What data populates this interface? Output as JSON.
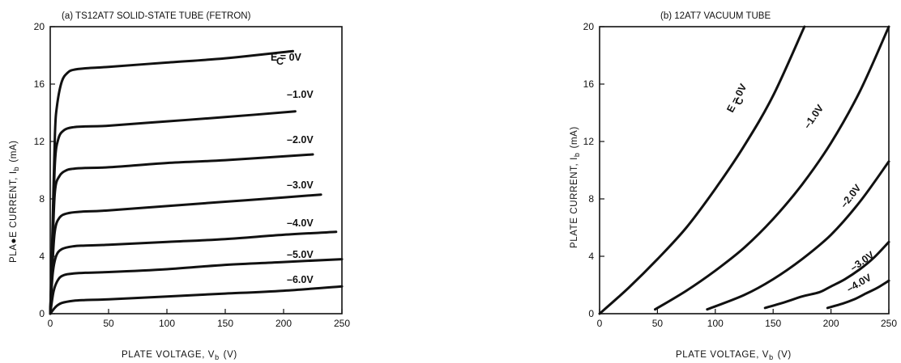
{
  "chart_data": [
    {
      "type": "line",
      "title": "(a)   TS12AT7 SOLID-STATE TUBE (FETRON)",
      "xlabel": "PLATE VOLTAGE, V",
      "xlabel_sub": "b",
      "xlabel_unit": "(V)",
      "ylabel": "PLA●E CURRENT, I",
      "ylabel_sub": "b",
      "ylabel_unit": "(mA)",
      "xlim": [
        0,
        250
      ],
      "ylim": [
        0,
        20
      ],
      "xticks": [
        "0",
        "50",
        "100",
        "150",
        "200",
        "250"
      ],
      "yticks": [
        "0",
        "4",
        "8",
        "12",
        "16",
        "20"
      ],
      "grid": false,
      "legend": "none",
      "series": [
        {
          "name": "E = 0V",
          "name_sub": "C",
          "x": [
            0,
            2,
            4,
            6,
            10,
            15,
            20,
            30,
            40,
            50,
            100,
            150,
            208
          ],
          "y": [
            0,
            6,
            12.5,
            14.6,
            16.2,
            16.8,
            17.0,
            17.1,
            17.15,
            17.2,
            17.5,
            17.8,
            18.3
          ]
        },
        {
          "name": "–1.0V",
          "x": [
            0,
            2,
            4,
            7,
            12,
            20,
            30,
            50,
            100,
            150,
            210
          ],
          "y": [
            0,
            5,
            10.5,
            12.2,
            12.8,
            13.0,
            13.05,
            13.1,
            13.4,
            13.7,
            14.1
          ]
        },
        {
          "name": "–2.0V",
          "x": [
            0,
            2,
            4,
            8,
            14,
            20,
            30,
            50,
            100,
            150,
            225
          ],
          "y": [
            0,
            4.5,
            8.5,
            9.6,
            10.0,
            10.1,
            10.15,
            10.2,
            10.5,
            10.7,
            11.1
          ]
        },
        {
          "name": "–3.0V",
          "x": [
            0,
            2,
            4,
            8,
            15,
            25,
            50,
            100,
            150,
            200,
            232
          ],
          "y": [
            0,
            3.5,
            5.8,
            6.7,
            7.0,
            7.1,
            7.2,
            7.5,
            7.8,
            8.1,
            8.3
          ]
        },
        {
          "name": "–4.0V",
          "x": [
            0,
            2,
            5,
            10,
            20,
            30,
            50,
            100,
            150,
            200,
            245
          ],
          "y": [
            0,
            2.7,
            4.0,
            4.5,
            4.7,
            4.75,
            4.8,
            5.0,
            5.2,
            5.5,
            5.7
          ]
        },
        {
          "name": "–5.0V",
          "x": [
            0,
            3,
            7,
            12,
            20,
            30,
            50,
            100,
            150,
            200,
            250
          ],
          "y": [
            0,
            1.6,
            2.4,
            2.7,
            2.8,
            2.85,
            2.9,
            3.1,
            3.4,
            3.6,
            3.8
          ]
        },
        {
          "name": "–6.0V",
          "x": [
            0,
            5,
            10,
            20,
            30,
            50,
            100,
            150,
            200,
            250
          ],
          "y": [
            0,
            0.5,
            0.75,
            0.9,
            0.95,
            1.0,
            1.2,
            1.4,
            1.6,
            1.9
          ]
        }
      ]
    },
    {
      "type": "line",
      "title": "(b)   12AT7 VACUUM TUBE",
      "xlabel": "PLATE VOLTAGE, V",
      "xlabel_sub": "b",
      "xlabel_unit": "(V)",
      "ylabel": "PLATE CURRENT, I",
      "ylabel_sub": "b",
      "ylabel_unit": "(mA)",
      "xlim": [
        0,
        250
      ],
      "ylim": [
        0,
        20
      ],
      "xticks": [
        "0",
        "50",
        "100",
        "150",
        "200",
        "250"
      ],
      "yticks": [
        "0",
        "4",
        "8",
        "12",
        "16",
        "20"
      ],
      "grid": false,
      "legend": "none",
      "series": [
        {
          "name": "E = 0V",
          "name_sub": "C",
          "x": [
            0,
            25,
            50,
            75,
            100,
            125,
            150,
            177
          ],
          "y": [
            0,
            1.8,
            3.8,
            6.0,
            8.7,
            11.7,
            15.2,
            20
          ]
        },
        {
          "name": "–1.0V",
          "x": [
            48,
            75,
            100,
            125,
            150,
            175,
            200,
            225,
            250
          ],
          "y": [
            0.3,
            1.6,
            3.0,
            4.6,
            6.6,
            9.0,
            11.9,
            15.5,
            20
          ]
        },
        {
          "name": "–2.0V",
          "x": [
            93,
            125,
            150,
            175,
            200,
            225,
            250
          ],
          "y": [
            0.3,
            1.3,
            2.4,
            3.8,
            5.5,
            7.8,
            10.6
          ]
        },
        {
          "name": "–3.0V",
          "x": [
            143,
            160,
            175,
            190,
            200,
            212,
            225,
            237,
            250
          ],
          "y": [
            0.4,
            0.8,
            1.2,
            1.5,
            1.9,
            2.4,
            3.1,
            3.9,
            5.0
          ]
        },
        {
          "name": "–4.0V",
          "x": [
            197,
            210,
            220,
            230,
            240,
            250
          ],
          "y": [
            0.4,
            0.7,
            1.0,
            1.4,
            1.8,
            2.3
          ]
        }
      ]
    }
  ]
}
